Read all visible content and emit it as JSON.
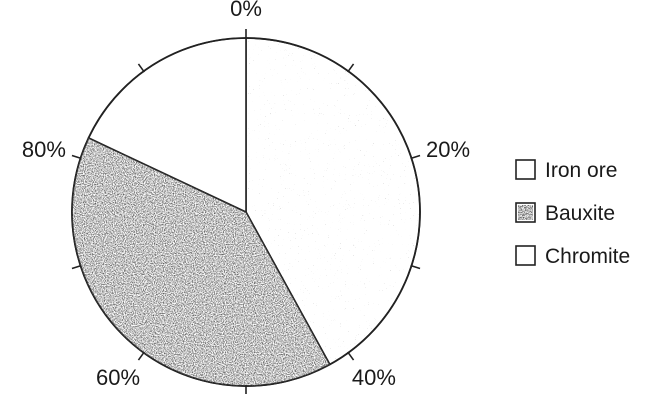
{
  "chart_data": {
    "type": "pie",
    "slices": [
      {
        "name": "Iron ore",
        "value": 42,
        "color": "#ffffff",
        "pattern": "light-speckle"
      },
      {
        "name": "Bauxite",
        "value": 40,
        "color": "#555555",
        "pattern": "dense-speckle"
      },
      {
        "name": "Chromite",
        "value": 18,
        "color": "#ffffff",
        "pattern": "none"
      }
    ],
    "tick_labels": [
      {
        "text": "0%",
        "at": 0
      },
      {
        "text": "20%",
        "at": 20
      },
      {
        "text": "40%",
        "at": 40
      },
      {
        "text": "60%",
        "at": 60
      },
      {
        "text": "80%",
        "at": 80
      }
    ],
    "tick_step": 10,
    "legend": {
      "placement": "right",
      "entries": [
        "Iron ore",
        "Bauxite",
        "Chromite"
      ]
    }
  }
}
